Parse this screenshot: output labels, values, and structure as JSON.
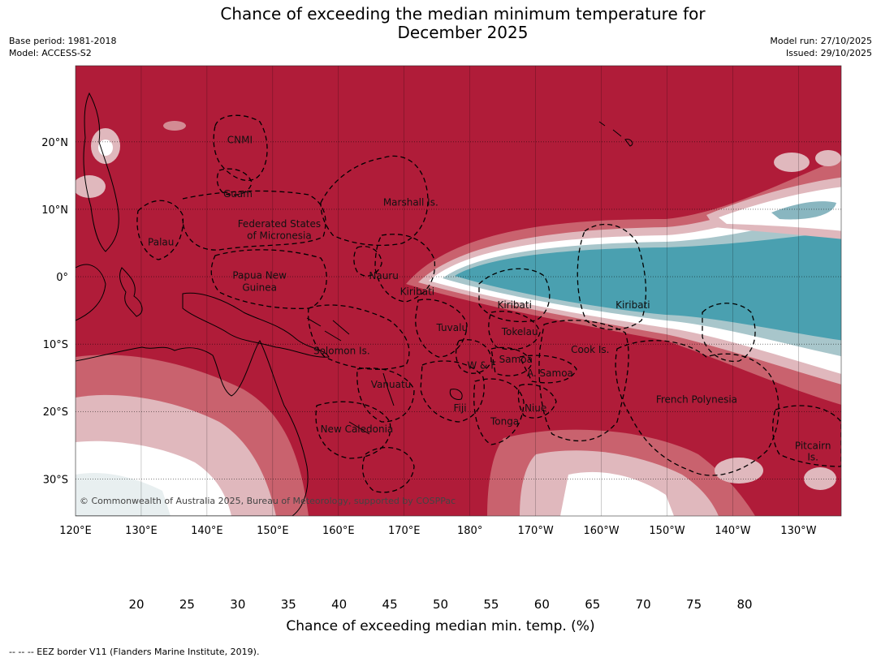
{
  "title_line1": "Chance of exceeding the median minimum temperature for",
  "title_line2": "December 2025",
  "base_period": "Base period: 1981-2018",
  "model": "Model: ACCESS-S2",
  "model_run": "Model run: 27/10/2025",
  "issued": "Issued: 29/10/2025",
  "copyright": "© Commonwealth of Australia 2025, Bureau of Meteorology, supported by COSPPac",
  "lat_labels": [
    "20°N",
    "10°N",
    "0°",
    "10°S",
    "20°S",
    "30°S"
  ],
  "lon_labels": [
    "120°E",
    "130°E",
    "140°E",
    "150°E",
    "160°E",
    "170°E",
    "180°",
    "170°W",
    "160°W",
    "150°W",
    "140°W",
    "130°W"
  ],
  "regions": [
    {
      "name": "CNMI",
      "lat": 20.3,
      "lon": 145.0
    },
    {
      "name": "Guam",
      "lat": 12.3,
      "lon": 144.7
    },
    {
      "name": "Marshall Is.",
      "lat": 11.0,
      "lon": 171.0
    },
    {
      "name": "Federated States",
      "lat": 7.8,
      "lon": 151.0
    },
    {
      "name": "of Micronesia",
      "lat": 6.1,
      "lon": 151.0
    },
    {
      "name": "Palau",
      "lat": 5.1,
      "lon": 133.0
    },
    {
      "name": "Papua New",
      "lat": 0.2,
      "lon": 148.0
    },
    {
      "name": "Guinea",
      "lat": -1.6,
      "lon": 148.0
    },
    {
      "name": "Nauru",
      "lat": 0.1,
      "lon": 166.9
    },
    {
      "name": "Kiribati",
      "lat": -2.2,
      "lon": 172.0
    },
    {
      "name": "Kiribati",
      "lat": -4.2,
      "lon": -173.2
    },
    {
      "name": "Kiribati",
      "lat": -4.2,
      "lon": -155.2
    },
    {
      "name": "Tuvalu",
      "lat": -7.6,
      "lon": 177.3
    },
    {
      "name": "Tokelau",
      "lat": -8.2,
      "lon": -172.4
    },
    {
      "name": "Cook Is.",
      "lat": -10.8,
      "lon": -161.7
    },
    {
      "name": "Solomon Is.",
      "lat": -11.0,
      "lon": 160.5
    },
    {
      "name": "Samoa",
      "lat": -12.3,
      "lon": -173.0
    },
    {
      "name": "W & F",
      "lat": -13.2,
      "lon": -178.2
    },
    {
      "name": "A. Samoa",
      "lat": -14.3,
      "lon": -167.8
    },
    {
      "name": "Vanuatu",
      "lat": -16.0,
      "lon": 168.0
    },
    {
      "name": "French Polynesia",
      "lat": -18.2,
      "lon": -145.5
    },
    {
      "name": "Fiji",
      "lat": -19.5,
      "lon": 178.5
    },
    {
      "name": "Niue",
      "lat": -19.5,
      "lon": -170.0
    },
    {
      "name": "Tonga",
      "lat": -21.5,
      "lon": -174.7
    },
    {
      "name": "New Caledonia",
      "lat": -22.6,
      "lon": 162.8
    },
    {
      "name": "Pitcairn",
      "lat": -25.1,
      "lon": -127.8
    },
    {
      "name": "Is.",
      "lat": -26.8,
      "lon": -127.8
    }
  ],
  "colorbar": {
    "label": "Chance of exceeding median min. temp. (%)",
    "ticks": [
      "20",
      "25",
      "30",
      "35",
      "40",
      "45",
      "50",
      "55",
      "60",
      "65",
      "70",
      "75",
      "80"
    ],
    "colors": [
      "#4aa0b0",
      "#6ba8b7",
      "#89b6c0",
      "#a8c6cb",
      "#cfd9db",
      "#e8eff0",
      "#ffffff",
      "#ffffff",
      "#ececec",
      "#e0b8bd",
      "#d38b93",
      "#c9626e",
      "#bd4352",
      "#b01c39"
    ]
  },
  "footnote": "-- -- -- EEZ border V11 (Flanders Marine Institute, 2019)."
}
